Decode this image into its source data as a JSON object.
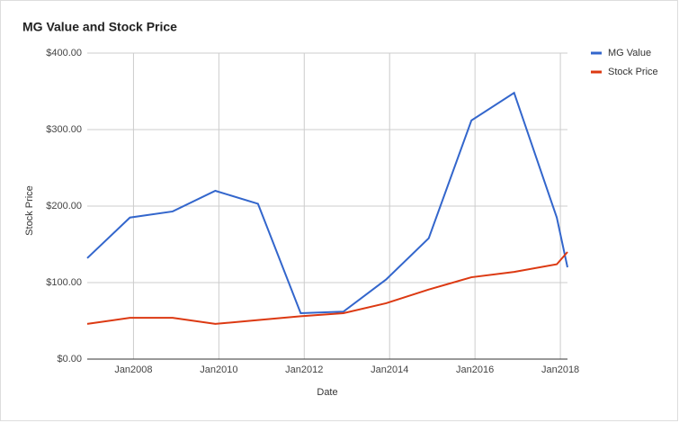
{
  "chart_data": {
    "type": "line",
    "title": "MG Value and Stock Price",
    "x_label": "Date",
    "y_label": "Stock Price",
    "x": [
      "2006-12",
      "2007-12",
      "2008-12",
      "2009-12",
      "2010-12",
      "2011-12",
      "2012-12",
      "2013-12",
      "2014-12",
      "2015-12",
      "2016-12",
      "2017-12",
      "2018-03"
    ],
    "series": [
      {
        "name": "MG Value",
        "color": "#3366cc",
        "values": [
          132,
          185,
          193,
          220,
          203,
          60,
          62,
          104,
          158,
          312,
          348,
          185,
          120
        ]
      },
      {
        "name": "Stock Price",
        "color": "#dc3912",
        "values": [
          46,
          54,
          54,
          46,
          51,
          56,
          60,
          73,
          91,
          107,
          114,
          124,
          140
        ]
      }
    ],
    "xlim": [
      "2006-12",
      "2018-03"
    ],
    "xticks": [
      {
        "value": "2008-01",
        "label": "Jan2008"
      },
      {
        "value": "2010-01",
        "label": "Jan2010"
      },
      {
        "value": "2012-01",
        "label": "Jan2012"
      },
      {
        "value": "2014-01",
        "label": "Jan2014"
      },
      {
        "value": "2016-01",
        "label": "Jan2016"
      },
      {
        "value": "2018-01",
        "label": "Jan2018"
      }
    ],
    "ylim": [
      0,
      400
    ],
    "yticks": [
      {
        "value": 0,
        "label": "$0.00"
      },
      {
        "value": 100,
        "label": "$100.00"
      },
      {
        "value": 200,
        "label": "$200.00"
      },
      {
        "value": 300,
        "label": "$300.00"
      },
      {
        "value": 400,
        "label": "$400.00"
      }
    ],
    "grid": true,
    "legend": "right"
  }
}
